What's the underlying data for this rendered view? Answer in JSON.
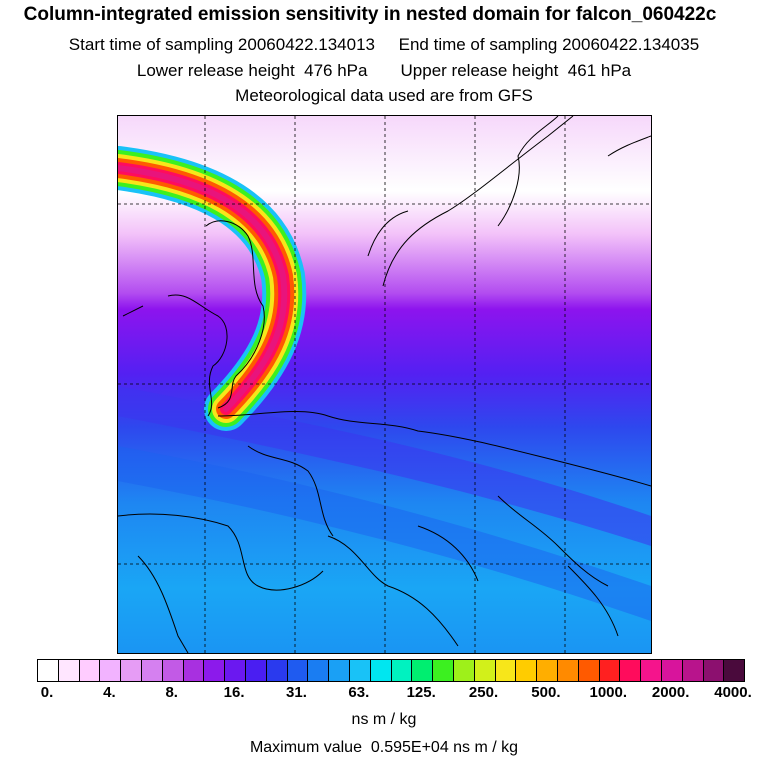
{
  "header": {
    "title": "Column-integrated emission sensitivity in nested domain for falcon_060422c",
    "line2": "Start time of sampling 20060422.134013     End time of sampling 20060422.134035",
    "line3": "Lower release height  476 hPa       Upper release height  461 hPa",
    "line4": "Meteorological data used are from GFS"
  },
  "colorbar": {
    "colors": [
      "#ffffff",
      "#ffe6ff",
      "#ffccff",
      "#f2b3ff",
      "#e69cf5",
      "#d580f0",
      "#c25ae6",
      "#a830e0",
      "#8c1aeb",
      "#6b18f0",
      "#4a1ef2",
      "#2a3aee",
      "#1f5bf0",
      "#1a7df2",
      "#1aa0f5",
      "#19c2f7",
      "#00e6f0",
      "#00f2c0",
      "#00ee70",
      "#3cf020",
      "#9ef01a",
      "#d2f01a",
      "#f7e61a",
      "#ffcc00",
      "#ffae00",
      "#ff8a00",
      "#ff5a00",
      "#ff2020",
      "#ff0c5c",
      "#f5148c",
      "#d8149c",
      "#b8148c",
      "#8c106f",
      "#4a0a3c"
    ],
    "tick_labels": [
      "0.",
      "4.",
      "8.",
      "16.",
      "31.",
      "63.",
      "125.",
      "250.",
      "500.",
      "1000.",
      "2000.",
      "4000."
    ],
    "unit": "ns m / kg"
  },
  "footer": {
    "max_value": "Maximum value  0.595E+04 ns m / kg"
  }
}
